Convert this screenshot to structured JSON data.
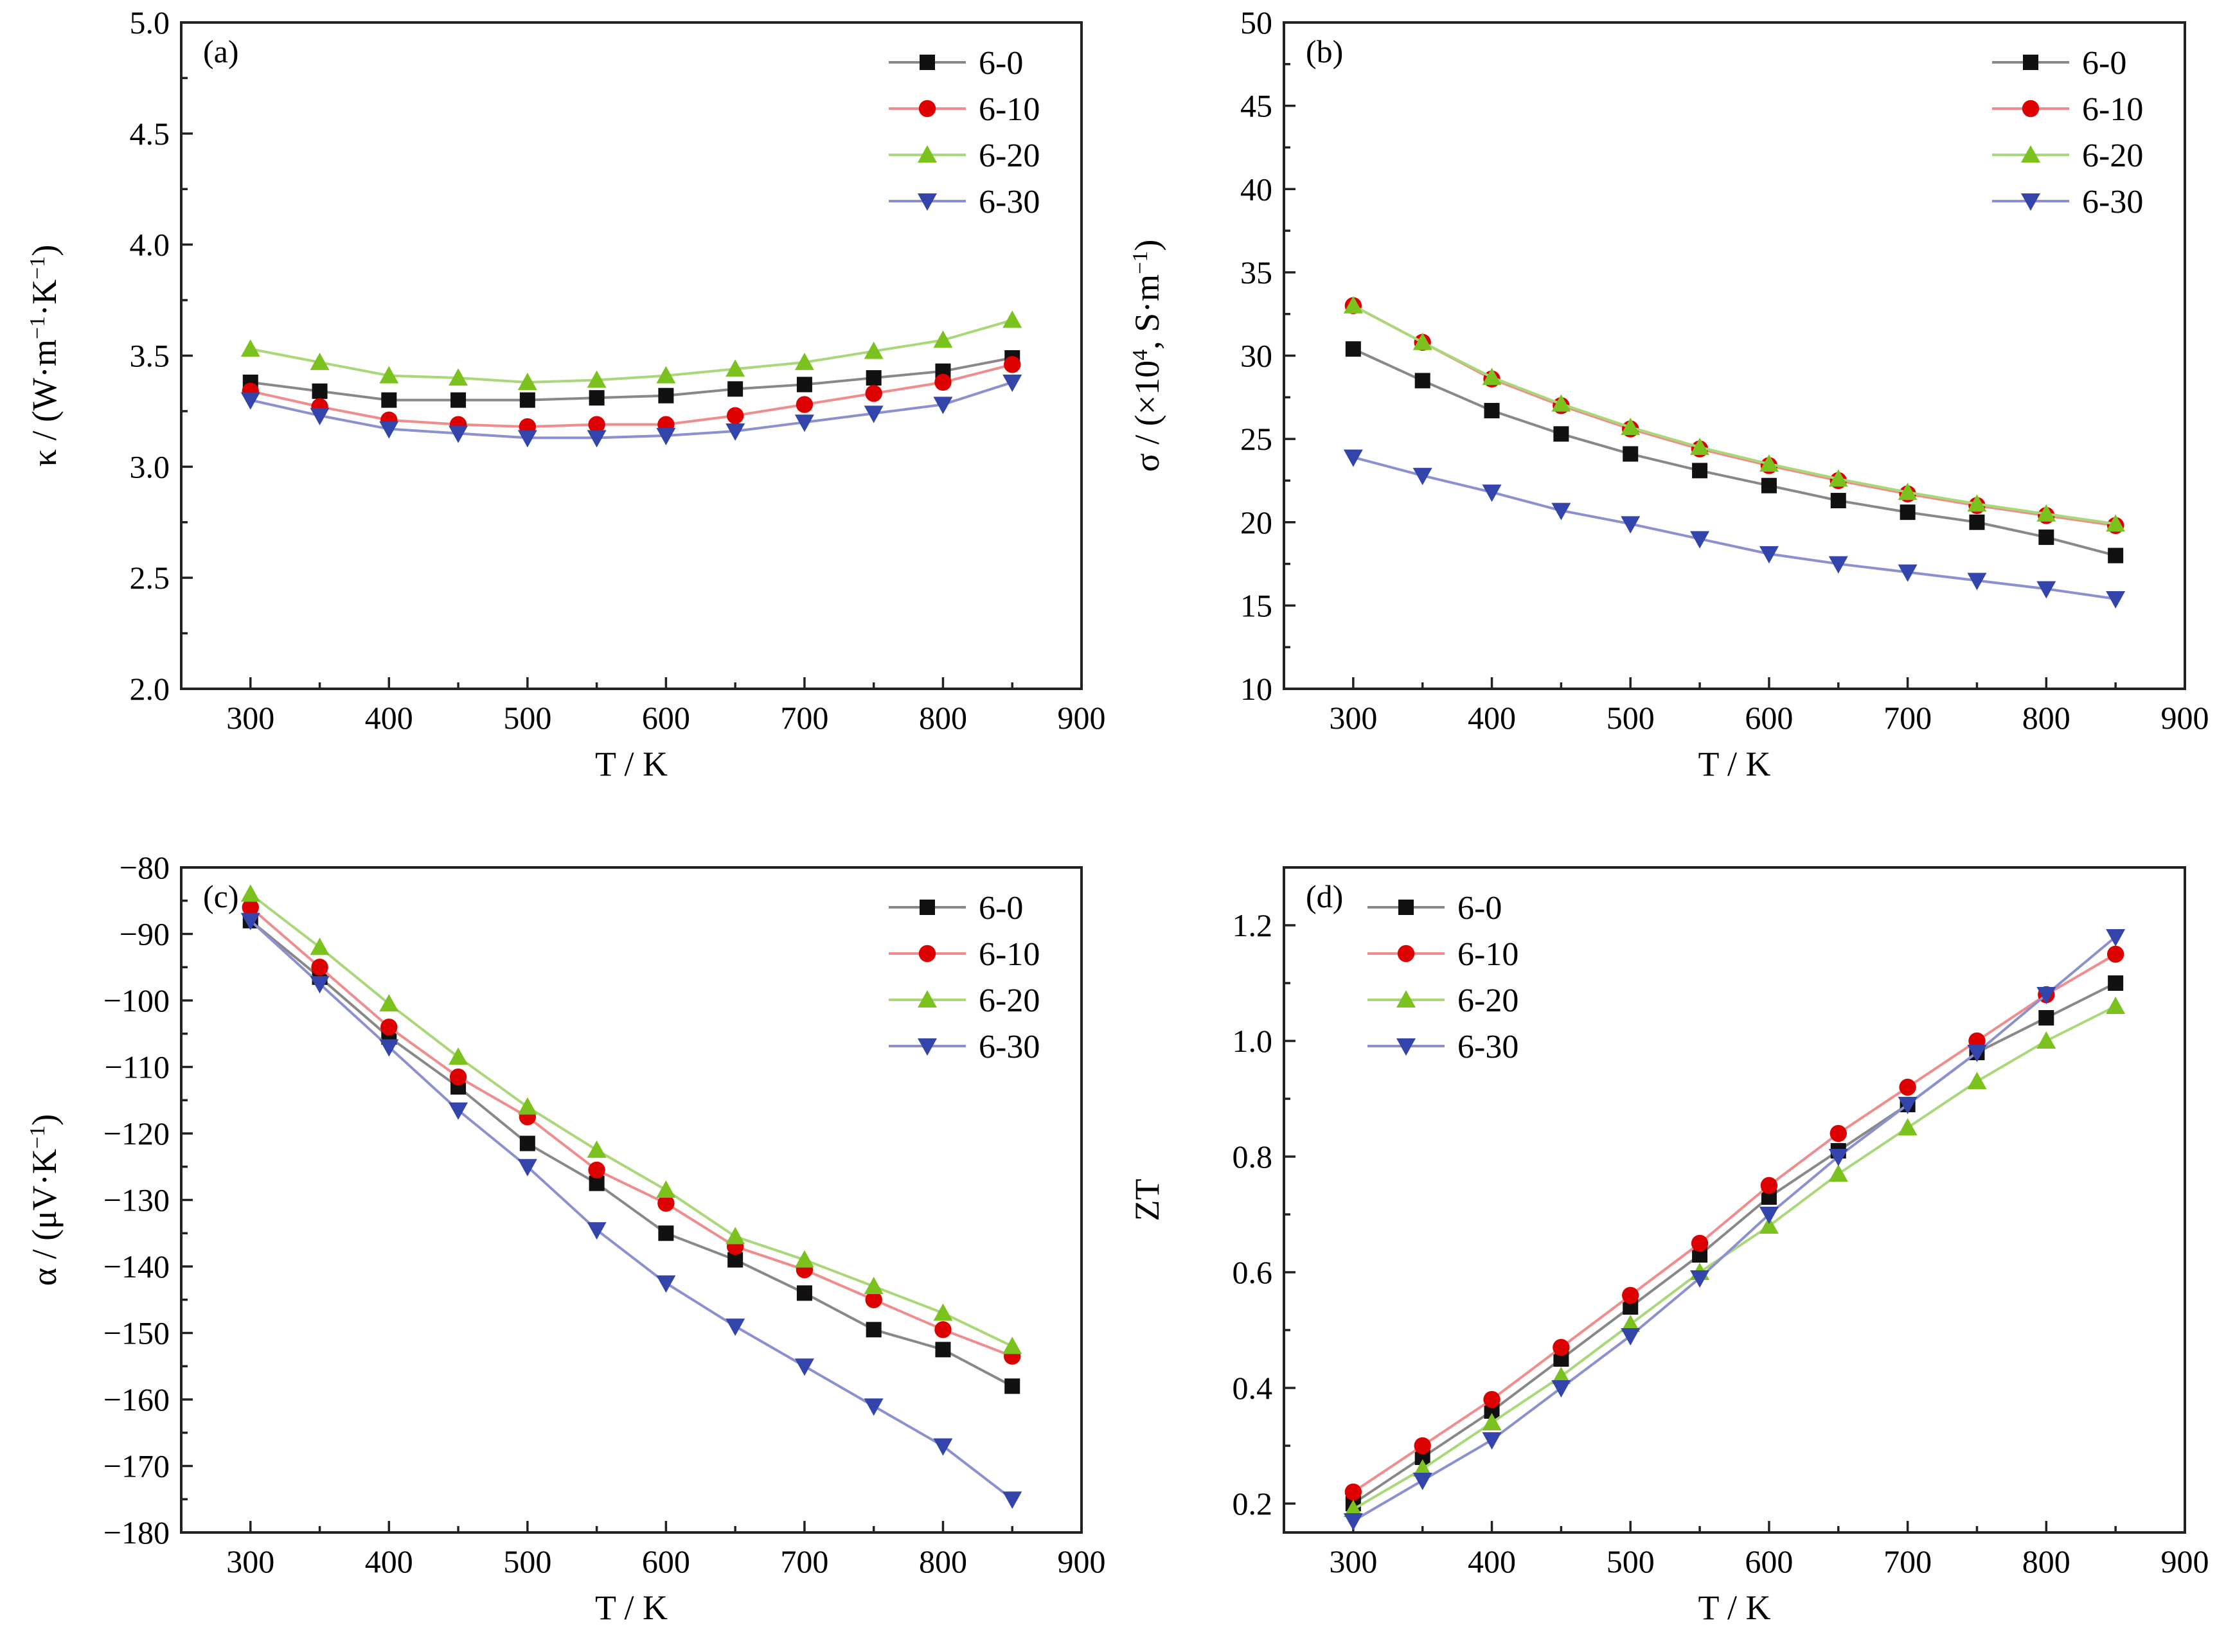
{
  "colors": {
    "6-0": "#111111",
    "6-10": "#dd0000",
    "6-20": "#7cc21f",
    "6-30": "#3344aa"
  },
  "line_colors": {
    "6-0": "#888888",
    "6-10": "#f08c8c",
    "6-20": "#a8d878",
    "6-30": "#8a90d0"
  },
  "chart_data": [
    {
      "type": "line",
      "panel_label": "(a)",
      "xlabel": "T / K",
      "ylabel": "κ / (W·m−1·K−1)",
      "xlim": [
        250,
        900
      ],
      "ylim": [
        2.0,
        5.0
      ],
      "xticks": [
        "300",
        "400",
        "500",
        "600",
        "700",
        "800",
        "900"
      ],
      "yticks": [
        "2.0",
        "2.5",
        "3.0",
        "3.5",
        "4.0",
        "4.5",
        "5.0"
      ],
      "legend": "top-right",
      "x": [
        300,
        350,
        400,
        450,
        500,
        550,
        600,
        650,
        700,
        750,
        800,
        850
      ],
      "series": [
        {
          "name": "6-0",
          "marker": "square",
          "values": [
            3.38,
            3.34,
            3.3,
            3.3,
            3.3,
            3.31,
            3.32,
            3.35,
            3.37,
            3.4,
            3.43,
            3.49
          ]
        },
        {
          "name": "6-10",
          "marker": "circle",
          "values": [
            3.34,
            3.27,
            3.21,
            3.19,
            3.18,
            3.19,
            3.19,
            3.23,
            3.28,
            3.33,
            3.38,
            3.46
          ]
        },
        {
          "name": "6-20",
          "marker": "triangle-up",
          "values": [
            3.53,
            3.47,
            3.41,
            3.4,
            3.38,
            3.39,
            3.41,
            3.44,
            3.47,
            3.52,
            3.57,
            3.66
          ]
        },
        {
          "name": "6-30",
          "marker": "triangle-down",
          "values": [
            3.3,
            3.23,
            3.17,
            3.15,
            3.13,
            3.13,
            3.14,
            3.16,
            3.2,
            3.24,
            3.28,
            3.38
          ]
        }
      ]
    },
    {
      "type": "line",
      "panel_label": "(b)",
      "xlabel": "T / K",
      "ylabel": "σ / (×104, S·m−1)",
      "xlim": [
        250,
        900
      ],
      "ylim": [
        10,
        50
      ],
      "xticks": [
        "300",
        "400",
        "500",
        "600",
        "700",
        "800",
        "900"
      ],
      "yticks": [
        "10",
        "15",
        "20",
        "25",
        "30",
        "35",
        "40",
        "45",
        "50"
      ],
      "legend": "top-right",
      "x": [
        300,
        350,
        400,
        450,
        500,
        550,
        600,
        650,
        700,
        750,
        800,
        850
      ],
      "series": [
        {
          "name": "6-0",
          "marker": "square",
          "values": [
            30.4,
            28.5,
            26.7,
            25.3,
            24.1,
            23.1,
            22.2,
            21.3,
            20.6,
            20.0,
            19.1,
            18.0
          ]
        },
        {
          "name": "6-10",
          "marker": "circle",
          "values": [
            33.0,
            30.8,
            28.6,
            27.0,
            25.6,
            24.4,
            23.4,
            22.5,
            21.7,
            21.0,
            20.4,
            19.8
          ]
        },
        {
          "name": "6-20",
          "marker": "triangle-up",
          "values": [
            33.0,
            30.8,
            28.7,
            27.1,
            25.7,
            24.5,
            23.5,
            22.6,
            21.8,
            21.1,
            20.5,
            19.9
          ]
        },
        {
          "name": "6-30",
          "marker": "triangle-down",
          "values": [
            23.9,
            22.8,
            21.8,
            20.7,
            19.9,
            19.0,
            18.1,
            17.5,
            17.0,
            16.5,
            16.0,
            15.4
          ]
        }
      ]
    },
    {
      "type": "line",
      "panel_label": "(c)",
      "xlabel": "T / K",
      "ylabel": "α / (μV·K−1)",
      "xlim": [
        250,
        900
      ],
      "ylim": [
        -180,
        -80
      ],
      "xticks": [
        "300",
        "400",
        "500",
        "600",
        "700",
        "800",
        "900"
      ],
      "yticks": [
        "−80",
        "−90",
        "−100",
        "−110",
        "−120",
        "−130",
        "−140",
        "−150",
        "−160",
        "−170",
        "−180"
      ],
      "legend": "top-right",
      "x": [
        300,
        350,
        400,
        450,
        500,
        550,
        600,
        650,
        700,
        750,
        800,
        850
      ],
      "series": [
        {
          "name": "6-0",
          "marker": "square",
          "values": [
            -88,
            -96.5,
            -105.5,
            -113,
            -121.5,
            -127.5,
            -135,
            -139,
            -144,
            -149.5,
            -152.5,
            -158
          ]
        },
        {
          "name": "6-10",
          "marker": "circle",
          "values": [
            -86,
            -95,
            -104,
            -111.5,
            -117.5,
            -125.5,
            -130.5,
            -137,
            -140.5,
            -145,
            -149.5,
            -153.5
          ]
        },
        {
          "name": "6-20",
          "marker": "triangle-up",
          "values": [
            -84,
            -92,
            -100.5,
            -108.5,
            -116,
            -122.5,
            -128.5,
            -135.5,
            -139,
            -143,
            -147,
            -152
          ]
        },
        {
          "name": "6-30",
          "marker": "triangle-down",
          "values": [
            -88,
            -97.5,
            -107,
            -116.5,
            -125,
            -134.5,
            -142.5,
            -149,
            -155,
            -161,
            -167,
            -175
          ]
        }
      ]
    },
    {
      "type": "line",
      "panel_label": "(d)",
      "xlabel": "T / K",
      "ylabel": "ZT",
      "xlim": [
        250,
        900
      ],
      "ylim": [
        0.15,
        1.3
      ],
      "xticks": [
        "300",
        "400",
        "500",
        "600",
        "700",
        "800",
        "900"
      ],
      "yticks": [
        "0.2",
        "0.4",
        "0.6",
        "0.8",
        "1.0",
        "1.2"
      ],
      "legend": "top-left",
      "x": [
        300,
        350,
        400,
        450,
        500,
        550,
        600,
        650,
        700,
        750,
        800,
        850
      ],
      "series": [
        {
          "name": "6-0",
          "marker": "square",
          "values": [
            0.2,
            0.28,
            0.36,
            0.45,
            0.54,
            0.63,
            0.73,
            0.81,
            0.89,
            0.98,
            1.04,
            1.1
          ]
        },
        {
          "name": "6-10",
          "marker": "circle",
          "values": [
            0.22,
            0.3,
            0.38,
            0.47,
            0.56,
            0.65,
            0.75,
            0.84,
            0.92,
            1.0,
            1.08,
            1.15
          ]
        },
        {
          "name": "6-20",
          "marker": "triangle-up",
          "values": [
            0.19,
            0.26,
            0.34,
            0.42,
            0.51,
            0.6,
            0.68,
            0.77,
            0.85,
            0.93,
            1.0,
            1.06
          ]
        },
        {
          "name": "6-30",
          "marker": "triangle-down",
          "values": [
            0.17,
            0.24,
            0.31,
            0.4,
            0.49,
            0.59,
            0.7,
            0.8,
            0.89,
            0.98,
            1.08,
            1.18
          ]
        }
      ]
    }
  ]
}
